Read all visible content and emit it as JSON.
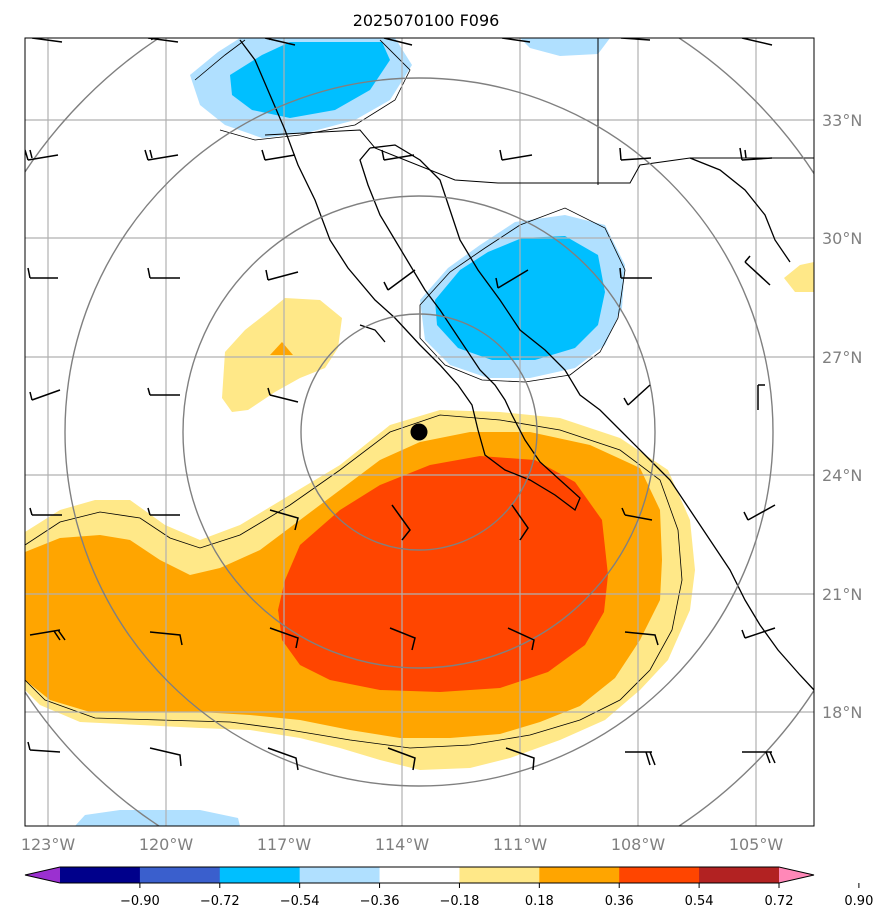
{
  "title": "2025070100 F096",
  "lon_labels": [
    "123°W",
    "120°W",
    "117°W",
    "114°W",
    "111°W",
    "108°W",
    "105°W"
  ],
  "lat_labels": [
    "33°N",
    "30°N",
    "27°N",
    "24°N",
    "21°N",
    "18°N"
  ],
  "colorbar": {
    "ticks": [
      "−0.90",
      "−0.72",
      "−0.54",
      "−0.36",
      "−0.18",
      "0.18",
      "0.36",
      "0.54",
      "0.72",
      "0.90"
    ],
    "colors": [
      "#9b30d0",
      "#00008b",
      "#3a5fcd",
      "#00bfff",
      "#b0e0ff",
      "#ffffff",
      "#ffe888",
      "#ffa500",
      "#ff4500",
      "#b22222",
      "#ff88b8"
    ]
  },
  "center_marker": {
    "label": "",
    "lon": -113.6,
    "lat": 25.1
  },
  "colors": {
    "land_outline": "#000000",
    "gridline": "#b0b0b0",
    "range_rings": "#808080"
  }
}
